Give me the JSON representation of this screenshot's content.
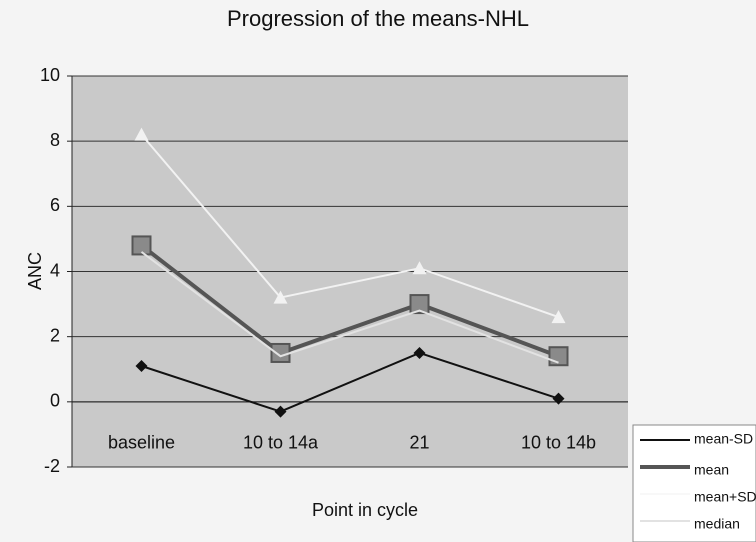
{
  "chart_data": {
    "type": "line",
    "title": "Progression of the means-NHL",
    "x_label": "Point in cycle",
    "y_label": "ANC",
    "categories": [
      "baseline",
      "10 to 14a",
      "21",
      "10 to 14b"
    ],
    "series": [
      {
        "name": "mean-SD",
        "color": "#111111",
        "marker": "diamond",
        "values": [
          1.1,
          -0.3,
          1.5,
          0.1
        ]
      },
      {
        "name": "mean",
        "color": "#555555",
        "marker": "square",
        "values": [
          4.8,
          1.5,
          3.0,
          1.4
        ]
      },
      {
        "name": "mean+SD",
        "color": "#f2f2f2",
        "marker": "triangle",
        "values": [
          8.2,
          3.2,
          4.1,
          2.6
        ]
      },
      {
        "name": "median",
        "color": "#e2e2e2",
        "marker": "none",
        "values": [
          4.6,
          1.4,
          2.8,
          1.2
        ]
      }
    ],
    "ylim": [
      -2,
      10
    ],
    "yticks": [
      -2,
      0,
      2,
      4,
      6,
      8,
      10
    ],
    "grid": true,
    "legend": "lower right"
  }
}
